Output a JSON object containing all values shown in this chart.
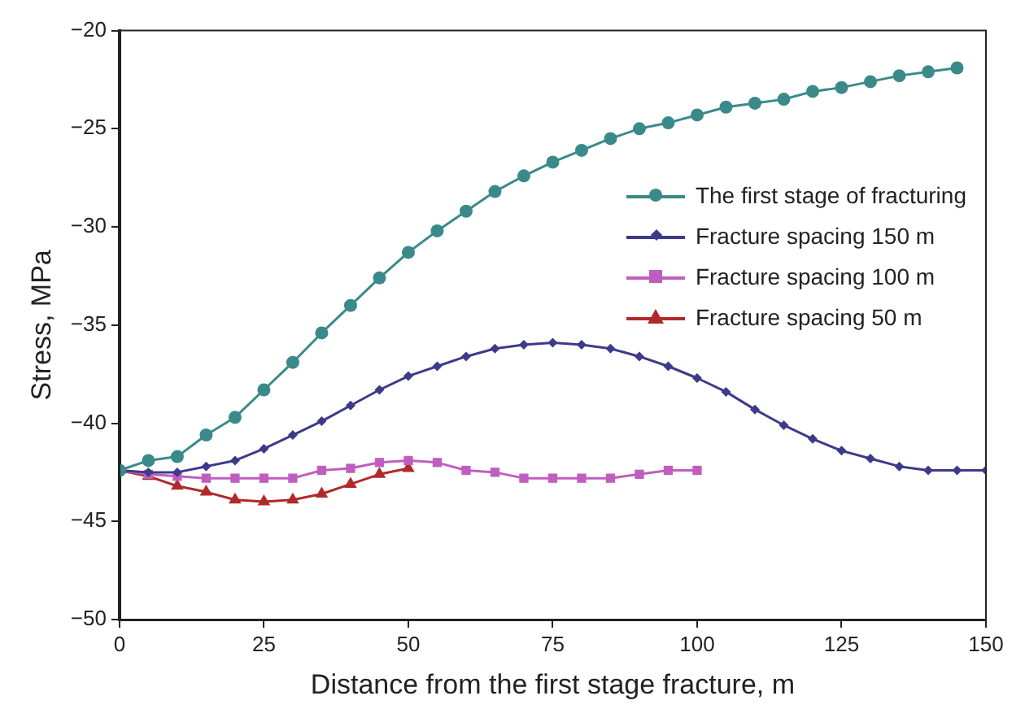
{
  "chart_data": {
    "type": "line",
    "xlabel": "Distance from the first stage fracture, m",
    "ylabel": "Stress, MPa",
    "xlim": [
      0,
      150
    ],
    "xticks": [
      0,
      25,
      50,
      75,
      100,
      125,
      150
    ],
    "ylim": [
      -50,
      -20
    ],
    "yticks": [
      -50,
      -45,
      -40,
      -35,
      -30,
      -25,
      -20
    ],
    "grid": false,
    "legend": "center right",
    "series": [
      {
        "name": "The first stage of fracturing",
        "color": "#3a8a8a",
        "marker": "circle",
        "x": [
          0,
          5,
          10,
          15,
          20,
          25,
          30,
          35,
          40,
          45,
          50,
          55,
          60,
          65,
          70,
          75,
          80,
          85,
          90,
          95,
          100,
          105,
          110,
          115,
          120,
          125,
          130,
          135,
          140,
          145
        ],
        "values": [
          -42.4,
          -41.9,
          -41.7,
          -40.6,
          -39.7,
          -38.3,
          -36.9,
          -35.4,
          -34.0,
          -32.6,
          -31.3,
          -30.2,
          -29.2,
          -28.2,
          -27.4,
          -26.7,
          -26.1,
          -25.5,
          -25.0,
          -24.7,
          -24.3,
          -23.9,
          -23.7,
          -23.5,
          -23.1,
          -22.9,
          -22.6,
          -22.3,
          -22.1,
          -21.9
        ]
      },
      {
        "name": "Fracture spacing 150 m",
        "color": "#3e3a8a",
        "marker": "diamond",
        "x": [
          0,
          5,
          10,
          15,
          20,
          25,
          30,
          35,
          40,
          45,
          50,
          55,
          60,
          65,
          70,
          75,
          80,
          85,
          90,
          95,
          100,
          105,
          110,
          115,
          120,
          125,
          130,
          135,
          140,
          145,
          150
        ],
        "values": [
          -42.4,
          -42.5,
          -42.5,
          -42.2,
          -41.9,
          -41.3,
          -40.6,
          -39.9,
          -39.1,
          -38.3,
          -37.6,
          -37.1,
          -36.6,
          -36.2,
          -36.0,
          -35.9,
          -36.0,
          -36.2,
          -36.6,
          -37.1,
          -37.7,
          -38.4,
          -39.3,
          -40.1,
          -40.8,
          -41.4,
          -41.8,
          -42.2,
          -42.4,
          -42.4,
          -42.4
        ]
      },
      {
        "name": "Fracture spacing 100 m",
        "color": "#c05ec0",
        "marker": "square",
        "x": [
          0,
          5,
          10,
          15,
          20,
          25,
          30,
          35,
          40,
          45,
          50,
          55,
          60,
          65,
          70,
          75,
          80,
          85,
          90,
          95,
          100
        ],
        "values": [
          -42.4,
          -42.6,
          -42.7,
          -42.8,
          -42.8,
          -42.8,
          -42.8,
          -42.4,
          -42.3,
          -42.0,
          -41.9,
          -42.0,
          -42.4,
          -42.5,
          -42.8,
          -42.8,
          -42.8,
          -42.8,
          -42.6,
          -42.4,
          -42.4
        ]
      },
      {
        "name": "Fracture spacing 50 m",
        "color": "#b02a2a",
        "marker": "triangle",
        "x": [
          0,
          5,
          10,
          15,
          20,
          25,
          30,
          35,
          40,
          45,
          50
        ],
        "values": [
          -42.4,
          -42.7,
          -43.2,
          -43.5,
          -43.9,
          -44.0,
          -43.9,
          -43.6,
          -43.1,
          -42.6,
          -42.3
        ]
      }
    ]
  }
}
